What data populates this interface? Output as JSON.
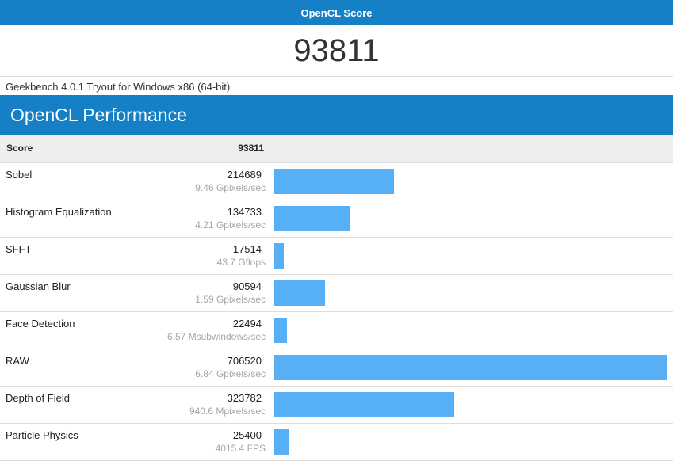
{
  "header": {
    "title": "OpenCL Score"
  },
  "total_score": "93811",
  "version": "Geekbench 4.0.1 Tryout for Windows x86 (64-bit)",
  "section": {
    "title": "OpenCL Performance"
  },
  "score_row": {
    "label": "Score",
    "value": "93811"
  },
  "bar_color": "#57b0f5",
  "chart_data": {
    "type": "bar",
    "categories": [
      "Sobel",
      "Histogram Equalization",
      "SFFT",
      "Gaussian Blur",
      "Face Detection",
      "RAW",
      "Depth of Field",
      "Particle Physics"
    ],
    "values": [
      214689,
      134733,
      17514,
      90594,
      22494,
      706520,
      323782,
      25400
    ],
    "rates": [
      "9.46 Gpixels/sec",
      "4.21 Gpixels/sec",
      "43.7 Gflops",
      "1.59 Gpixels/sec",
      "6.57 Msubwindows/sec",
      "6.84 Gpixels/sec",
      "940.6 Mpixels/sec",
      "4015.4 FPS"
    ],
    "xlim": [
      0,
      706520
    ]
  },
  "benchmarks": [
    {
      "name": "Sobel",
      "score": "214689",
      "rate": "9.46 Gpixels/sec"
    },
    {
      "name": "Histogram Equalization",
      "score": "134733",
      "rate": "4.21 Gpixels/sec"
    },
    {
      "name": "SFFT",
      "score": "17514",
      "rate": "43.7 Gflops"
    },
    {
      "name": "Gaussian Blur",
      "score": "90594",
      "rate": "1.59 Gpixels/sec"
    },
    {
      "name": "Face Detection",
      "score": "22494",
      "rate": "6.57 Msubwindows/sec"
    },
    {
      "name": "RAW",
      "score": "706520",
      "rate": "6.84 Gpixels/sec"
    },
    {
      "name": "Depth of Field",
      "score": "323782",
      "rate": "940.6 Mpixels/sec"
    },
    {
      "name": "Particle Physics",
      "score": "25400",
      "rate": "4015.4 FPS"
    }
  ]
}
